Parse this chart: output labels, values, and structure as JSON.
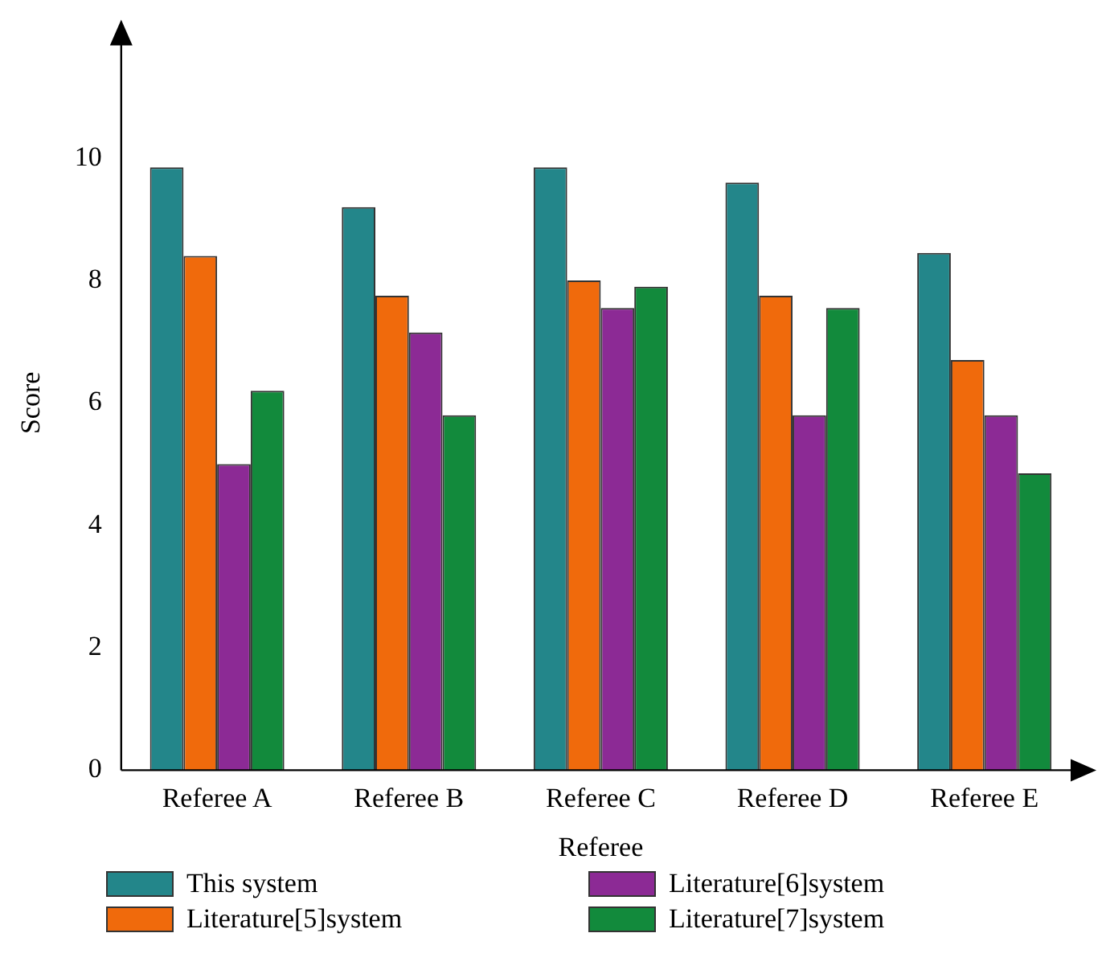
{
  "chart_data": {
    "type": "bar",
    "xlabel": "Referee",
    "ylabel": "Score",
    "categories": [
      "Referee A",
      "Referee B",
      "Referee C",
      "Referee D",
      "Referee E"
    ],
    "series": [
      {
        "name": "This system",
        "color": "#23868a",
        "values": [
          9.85,
          9.2,
          9.85,
          9.6,
          8.45
        ]
      },
      {
        "name": "Literature[5]system",
        "color": "#f06a0c",
        "values": [
          8.4,
          7.75,
          8.0,
          7.75,
          6.7
        ]
      },
      {
        "name": "Literature[6]system",
        "color": "#8c2a95",
        "values": [
          5.0,
          7.15,
          7.55,
          5.8,
          5.8
        ]
      },
      {
        "name": "Literature[7]system",
        "color": "#128a3c",
        "values": [
          6.2,
          5.8,
          7.9,
          7.55,
          4.85
        ]
      }
    ],
    "ylim": [
      0,
      12
    ],
    "yticks": [
      0,
      2,
      4,
      6,
      8,
      10
    ],
    "grid": false,
    "legend": "bottom"
  }
}
